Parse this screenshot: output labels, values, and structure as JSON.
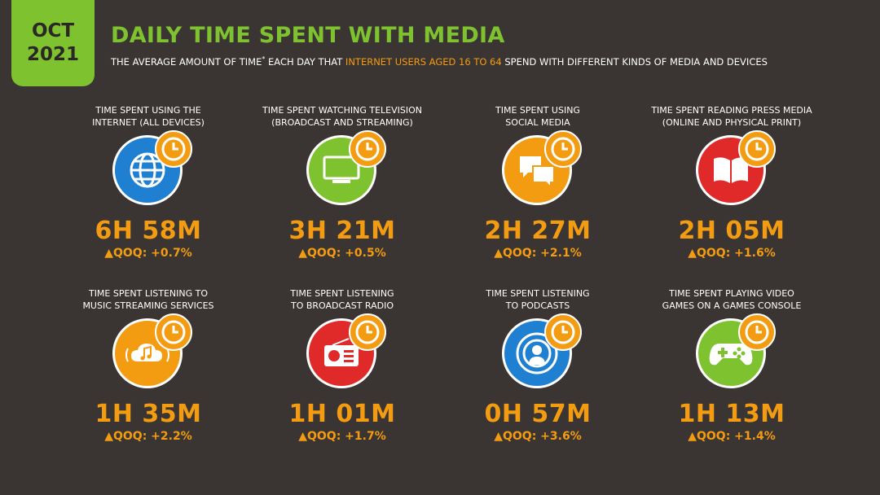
{
  "badge": {
    "month": "OCT",
    "year": "2021"
  },
  "header": {
    "title": "DAILY TIME SPENT WITH MEDIA",
    "subtitle_pre": "THE AVERAGE AMOUNT OF TIME",
    "subtitle_mark": "*",
    "subtitle_mid": " EACH DAY THAT ",
    "subtitle_hl": "INTERNET USERS AGED 16 TO 64",
    "subtitle_post": " SPEND WITH DIFFERENT KINDS OF MEDIA AND DEVICES"
  },
  "colors": {
    "background": "#3a3532",
    "green": "#7fc22f",
    "orange": "#f39c12",
    "blue": "#1f7fd1",
    "tv_green": "#7fc22f",
    "social_orange": "#f39c12",
    "red": "#e02a2a"
  },
  "cards": [
    {
      "label": "TIME SPENT USING THE\nINTERNET (ALL DEVICES)",
      "value": "6H 58M",
      "qoq": "▲QOQ: +0.7%",
      "icon": "globe-icon",
      "color": "#1f7fd1"
    },
    {
      "label": "TIME SPENT WATCHING TELEVISION\n(BROADCAST AND STREAMING)",
      "value": "3H 21M",
      "qoq": "▲QOQ: +0.5%",
      "icon": "tv-icon",
      "color": "#7fc22f"
    },
    {
      "label": "TIME SPENT USING\nSOCIAL MEDIA",
      "value": "2H 27M",
      "qoq": "▲QOQ: +2.1%",
      "icon": "chat-bubbles-icon",
      "color": "#f39c12"
    },
    {
      "label": "TIME SPENT READING PRESS MEDIA\n(ONLINE AND PHYSICAL PRINT)",
      "value": "2H 05M",
      "qoq": "▲QOQ: +1.6%",
      "icon": "book-icon",
      "color": "#e02a2a"
    },
    {
      "label": "TIME SPENT LISTENING TO\nMUSIC STREAMING SERVICES",
      "value": "1H 35M",
      "qoq": "▲QOQ: +2.2%",
      "icon": "music-cloud-icon",
      "color": "#f39c12"
    },
    {
      "label": "TIME SPENT LISTENING\nTO BROADCAST RADIO",
      "value": "1H 01M",
      "qoq": "▲QOQ: +1.7%",
      "icon": "radio-icon",
      "color": "#e02a2a"
    },
    {
      "label": "TIME SPENT LISTENING\nTO PODCASTS",
      "value": "0H 57M",
      "qoq": "▲QOQ: +3.6%",
      "icon": "podcast-icon",
      "color": "#1f7fd1"
    },
    {
      "label": "TIME SPENT PLAYING VIDEO\nGAMES ON A GAMES CONSOLE",
      "value": "1H 13M",
      "qoq": "▲QOQ: +1.4%",
      "icon": "gamepad-icon",
      "color": "#7fc22f"
    }
  ]
}
